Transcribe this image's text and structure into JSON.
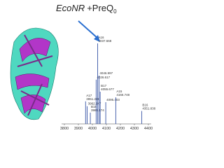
{
  "chart_data": {
    "type": "spectrum",
    "title_parts": [
      "EcoNR",
      "+PreQ",
      "0"
    ],
    "peaks": [
      {
        "x": 3951.229,
        "intensity": 28,
        "labels": [
          "A17",
          "3951.229"
        ]
      },
      {
        "x": 3962.947,
        "intensity": 22,
        "labels": [
          "3962.947"
        ]
      },
      {
        "x": 3985.174,
        "intensity": 14,
        "labels": [
          "B18",
          "3985.174"
        ]
      },
      {
        "x": 4026.617,
        "intensity": 55,
        "labels": [
          "4026.617"
        ]
      },
      {
        "x": 4037.668,
        "intensity": 100,
        "labels": [
          "A16",
          "4037.668"
        ]
      },
      {
        "x": 4046.997,
        "intensity": 60,
        "labels": [
          "4046.997"
        ]
      },
      {
        "x": 4055.677,
        "intensity": 40,
        "labels": [
          "B17",
          "4055.677"
        ]
      },
      {
        "x": 4095.403,
        "intensity": 27,
        "labels": [
          "4095.403"
        ]
      },
      {
        "x": 4166.748,
        "intensity": 33,
        "labels": [
          "A15",
          "4166.748"
        ]
      },
      {
        "x": 4351.838,
        "intensity": 16,
        "labels": [
          "B16",
          "4351.838"
        ]
      }
    ],
    "color": "#1f3f9a",
    "xlim": [
      3780,
      4420
    ],
    "xticks": [
      3800,
      3900,
      4000,
      4100,
      4200,
      4300,
      4400
    ]
  }
}
